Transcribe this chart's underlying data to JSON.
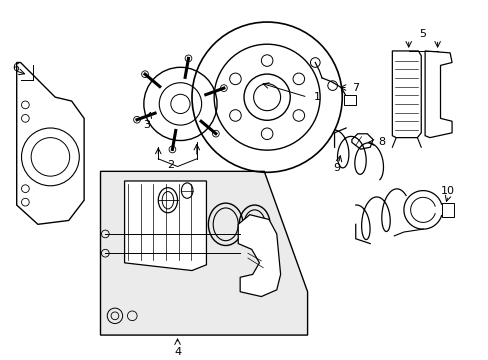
{
  "background_color": "#ffffff",
  "line_color": "#000000",
  "fill_light": "#ebebeb",
  "figsize": [
    4.89,
    3.6
  ],
  "dpi": 100
}
